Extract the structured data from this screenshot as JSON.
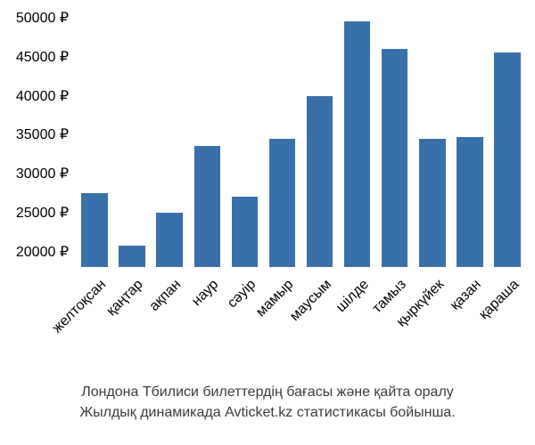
{
  "chart": {
    "type": "bar",
    "categories": [
      "желтоқсан",
      "қаңтар",
      "ақпан",
      "наур",
      "сәуір",
      "мамыр",
      "маусым",
      "шілде",
      "тамыз",
      "қыркүйек",
      "қазан",
      "қараша"
    ],
    "values": [
      27500,
      20800,
      25000,
      33500,
      27000,
      34500,
      40000,
      49500,
      46000,
      34500,
      34700,
      45500
    ],
    "bar_color": "#3a70a9",
    "ylabel_suffix": " ₽",
    "yticks": [
      20000,
      25000,
      30000,
      35000,
      40000,
      45000,
      50000
    ],
    "ylim": [
      18000,
      50000
    ],
    "label_fontsize": 16,
    "label_color": "#000000",
    "background_color": "#ffffff",
    "bar_width_ratio": 0.7,
    "x_label_rotation": -45
  },
  "caption": {
    "line1": "Лондона Тбилиси билеттердің бағасы және қайта оралу",
    "line2": "Жылдық динамикада Avticket.kz статистикасы бойынша.",
    "fontsize": 16,
    "color": "#3b3b3b"
  }
}
